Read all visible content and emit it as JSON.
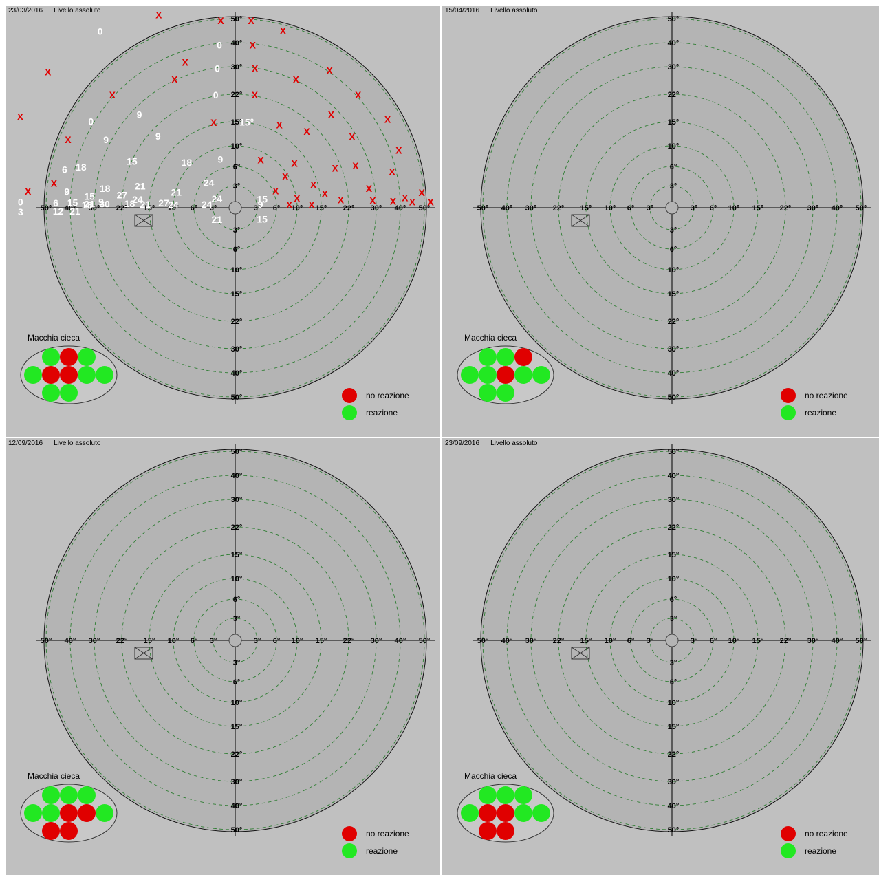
{
  "labels": {
    "blind_spot": "Macchia cieca",
    "no_reaction": "no reazione",
    "reaction": "reazione"
  },
  "colors": {
    "panel_bg": "#c0c0c0",
    "disc": "#b4b4b4",
    "ring": "#2e7d32",
    "no_reaction": "#e00000",
    "reaction": "#22e822",
    "value_text": "#ffffff",
    "marker": "#e00000",
    "border": "#000000"
  },
  "chart_data": [
    {
      "type": "scatter",
      "date": "23/03/2016",
      "mode": "Livello assoluto",
      "radii_deg": [
        3,
        6,
        10,
        15,
        22,
        30,
        40,
        50
      ],
      "axis_labels": [
        "3°",
        "6°",
        "10°",
        "15°",
        "22°",
        "30°",
        "40°",
        "50°"
      ],
      "points": [
        {
          "x": -19.5,
          "y": 49.2,
          "v": "X"
        },
        {
          "x": -3.8,
          "y": 49.2,
          "v": "X"
        },
        {
          "x": 4.2,
          "y": 49.2,
          "v": "X"
        },
        {
          "x": 12.4,
          "y": 46.0,
          "v": "X"
        },
        {
          "x": -33.5,
          "y": 43.8,
          "v": "0"
        },
        {
          "x": -3.8,
          "y": 39.2,
          "v": "0"
        },
        {
          "x": 4.2,
          "y": 39.2,
          "v": "X"
        },
        {
          "x": -46.0,
          "y": 33.4,
          "v": "X"
        },
        {
          "x": -11.5,
          "y": 33.4,
          "v": "X"
        },
        {
          "x": 23.0,
          "y": 33.4,
          "v": "X"
        },
        {
          "x": -3.8,
          "y": 29.6,
          "v": "0"
        },
        {
          "x": 4.2,
          "y": 29.6,
          "v": "X"
        },
        {
          "x": -30.0,
          "y": 27.5,
          "v": "X"
        },
        {
          "x": -13.0,
          "y": 27.5,
          "v": "X"
        },
        {
          "x": 13.0,
          "y": 27.5,
          "v": "X"
        },
        {
          "x": 30.0,
          "y": 27.5,
          "v": "X"
        },
        {
          "x": -3.8,
          "y": 22.0,
          "v": "0"
        },
        {
          "x": 3.8,
          "y": 22.0,
          "v": "X"
        },
        {
          "x": -20.0,
          "y": 19.4,
          "v": "9"
        },
        {
          "x": 20.0,
          "y": 19.4,
          "v": "X"
        },
        {
          "x": -35.4,
          "y": 21.2,
          "v": "0"
        },
        {
          "x": -52.8,
          "y": 22.4,
          "v": "X"
        },
        {
          "x": 38.6,
          "y": 22.4,
          "v": "X"
        },
        {
          "x": -43.0,
          "y": 17.5,
          "v": "X"
        },
        {
          "x": -28.4,
          "y": 15.0,
          "v": "9"
        },
        {
          "x": 8.0,
          "y": 15.0,
          "v": "X"
        },
        {
          "x": 24.6,
          "y": 15.0,
          "v": "X"
        },
        {
          "x": -3.8,
          "y": 15.0,
          "v": "X"
        },
        {
          "x": 2.0,
          "y": 15.0,
          "v": "15°"
        },
        {
          "x": -14.6,
          "y": 13.5,
          "v": "9"
        },
        {
          "x": 13.5,
          "y": 14.4,
          "v": "X"
        },
        {
          "x": 41.0,
          "y": 14.4,
          "v": "X"
        },
        {
          "x": -43.0,
          "y": 9.6,
          "v": "6"
        },
        {
          "x": -36.4,
          "y": 9.6,
          "v": "18"
        },
        {
          "x": -20.0,
          "y": 9.0,
          "v": "15"
        },
        {
          "x": -8.0,
          "y": 7.5,
          "v": "18"
        },
        {
          "x": -2.3,
          "y": 7.5,
          "v": "9"
        },
        {
          "x": 4.0,
          "y": 7.5,
          "v": "X"
        },
        {
          "x": 10.0,
          "y": 7.5,
          "v": "X"
        },
        {
          "x": 19.0,
          "y": 7.5,
          "v": "X"
        },
        {
          "x": 24.6,
          "y": 8.6,
          "v": "X"
        },
        {
          "x": 37.3,
          "y": 8.6,
          "v": "X"
        },
        {
          "x": 56.0,
          "y": 8.6,
          "v": "X"
        },
        {
          "x": -47.0,
          "y": 6.3,
          "v": "X"
        },
        {
          "x": -52.8,
          "y": 4.2,
          "v": "X"
        },
        {
          "x": -41.5,
          "y": 4.0,
          "v": "9"
        },
        {
          "x": -27.0,
          "y": 4.0,
          "v": "18"
        },
        {
          "x": -17.5,
          "y": 4.0,
          "v": "21"
        },
        {
          "x": -3.8,
          "y": 3.6,
          "v": "24"
        },
        {
          "x": 8.0,
          "y": 5.0,
          "v": "X"
        },
        {
          "x": 13.5,
          "y": 4.0,
          "v": "X"
        },
        {
          "x": 28.0,
          "y": 4.0,
          "v": "X"
        },
        {
          "x": 49.0,
          "y": 4.0,
          "v": "X"
        },
        {
          "x": -32.0,
          "y": 2.5,
          "v": "15"
        },
        {
          "x": -22.0,
          "y": 2.5,
          "v": "27"
        },
        {
          "x": -9.5,
          "y": 2.5,
          "v": "21"
        },
        {
          "x": 6.0,
          "y": 2.5,
          "v": "X"
        },
        {
          "x": 16.0,
          "y": 2.5,
          "v": "X"
        },
        {
          "x": 42.0,
          "y": 2.5,
          "v": "X"
        },
        {
          "x": -28.0,
          "y": 1.2,
          "v": "9"
        },
        {
          "x": -18.0,
          "y": 1.5,
          "v": "24"
        },
        {
          "x": -2.5,
          "y": 1.2,
          "v": "24"
        },
        {
          "x": 3.8,
          "y": 1.2,
          "v": "15"
        },
        {
          "x": 10.0,
          "y": 1.5,
          "v": "X"
        },
        {
          "x": 20.0,
          "y": 1.5,
          "v": "X"
        },
        {
          "x": 29.0,
          "y": 1.5,
          "v": "X"
        },
        {
          "x": 37.0,
          "y": 1.5,
          "v": "X"
        },
        {
          "x": 45.0,
          "y": 1.5,
          "v": "X"
        },
        {
          "x": 51.0,
          "y": 1.5,
          "v": "X"
        },
        {
          "x": -54.0,
          "y": 1.5,
          "v": "0"
        },
        {
          "x": -46.0,
          "y": 1.2,
          "v": "6"
        },
        {
          "x": -39.0,
          "y": 1.2,
          "v": "15"
        },
        {
          "x": -32.0,
          "y": 0.8,
          "v": "21"
        },
        {
          "x": -27.0,
          "y": 0.8,
          "v": "30"
        },
        {
          "x": -20.0,
          "y": 0.8,
          "v": "18"
        },
        {
          "x": -12.0,
          "y": 0.8,
          "v": "27"
        },
        {
          "x": -33.0,
          "y": 0.6,
          "v": "18"
        },
        {
          "x": -16.0,
          "y": 0.6,
          "v": "21"
        },
        {
          "x": -10.0,
          "y": 0.5,
          "v": "24"
        },
        {
          "x": -4.0,
          "y": 0.5,
          "v": "24"
        },
        {
          "x": 3.5,
          "y": 0.5,
          "v": "9"
        },
        {
          "x": 8.5,
          "y": 0.5,
          "v": "X"
        },
        {
          "x": 13.0,
          "y": 0.5,
          "v": "X"
        },
        {
          "x": -54.0,
          "y": -1.0,
          "v": "3"
        },
        {
          "x": -45.0,
          "y": -0.9,
          "v": "12"
        },
        {
          "x": -38.0,
          "y": -0.8,
          "v": "21"
        },
        {
          "x": -2.5,
          "y": -1.6,
          "v": "21"
        },
        {
          "x": 3.8,
          "y": -1.6,
          "v": "15"
        },
        {
          "x": 56.0,
          "y": -1.0,
          "v": "X"
        }
      ]
    },
    {
      "type": "scatter",
      "date": "15/04/2016",
      "mode": "Livello assoluto",
      "radii_deg": [
        3,
        6,
        10,
        15,
        22,
        30,
        40,
        50
      ],
      "axis_labels": [
        "3°",
        "6°",
        "10°",
        "15°",
        "22°",
        "30°",
        "40°",
        "50°"
      ],
      "points": []
    },
    {
      "type": "scatter",
      "date": "12/09/2016",
      "mode": "Livello assoluto",
      "radii_deg": [
        3,
        6,
        10,
        15,
        22,
        30,
        40,
        50
      ],
      "axis_labels": [
        "3°",
        "6°",
        "10°",
        "15°",
        "22°",
        "30°",
        "40°",
        "50°"
      ],
      "points": []
    },
    {
      "type": "scatter",
      "date": "23/09/2016",
      "mode": "Livello assoluto",
      "radii_deg": [
        3,
        6,
        10,
        15,
        22,
        30,
        40,
        50
      ],
      "axis_labels": [
        "3°",
        "6°",
        "10°",
        "15°",
        "22°",
        "30°",
        "40°",
        "50°"
      ],
      "points": []
    }
  ],
  "blind_spot_tests": [
    [
      1,
      0,
      1,
      1,
      0,
      0,
      1,
      1,
      1,
      1
    ],
    [
      1,
      1,
      0,
      1,
      1,
      0,
      1,
      1,
      1,
      1
    ],
    [
      1,
      1,
      1,
      1,
      1,
      0,
      0,
      1,
      0,
      0
    ],
    [
      1,
      1,
      1,
      1,
      0,
      0,
      1,
      1,
      0,
      0
    ]
  ]
}
